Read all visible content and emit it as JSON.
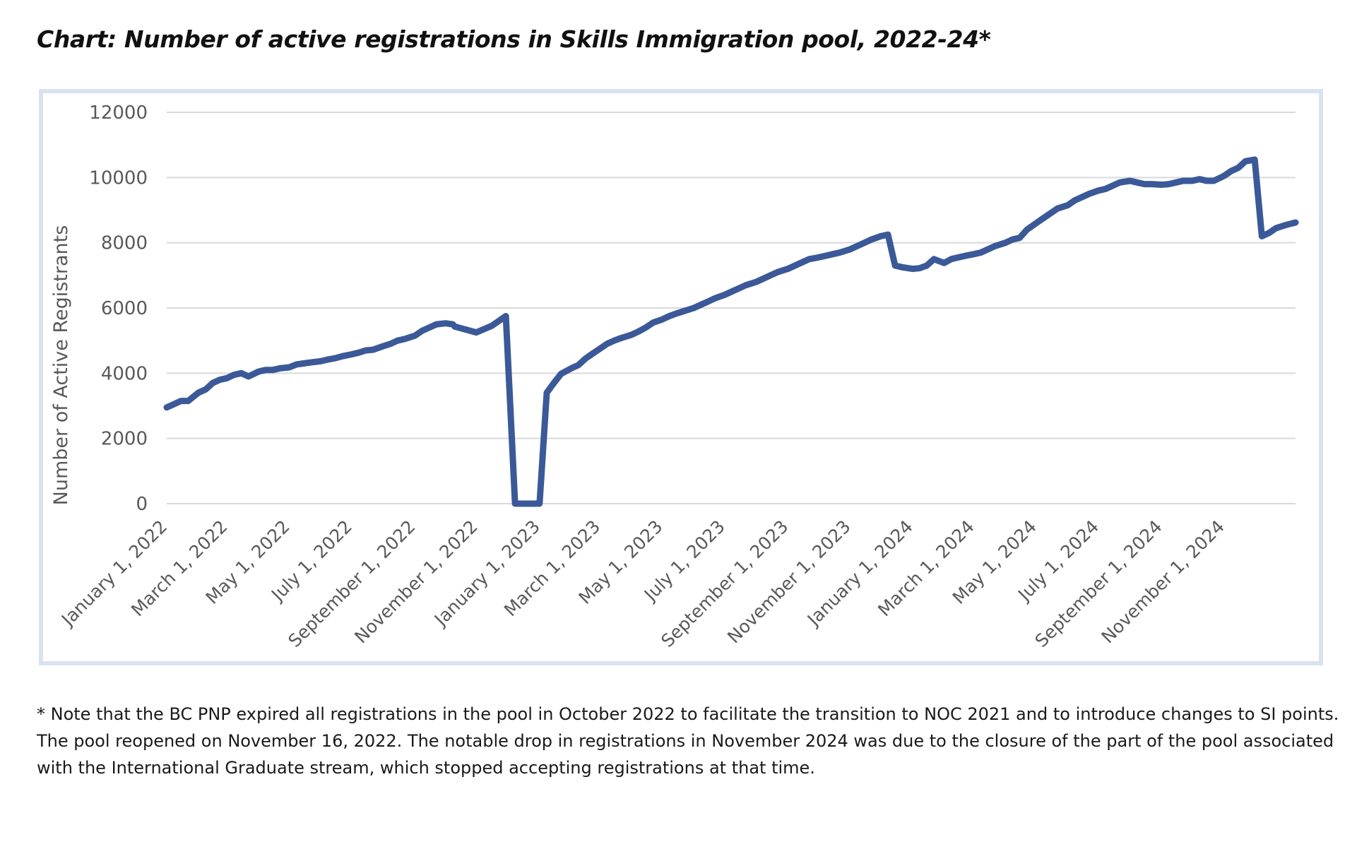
{
  "title": "Chart: Number of active registrations in Skills Immigration pool, 2022-24*",
  "footnote": {
    "lines": [
      "* Note that the BC PNP expired all registrations in the pool in October 2022 to facilitate the transition to NOC 2021 and to introduce changes to SI points.",
      "The pool reopened on November 16, 2022. The notable drop in registrations in November 2024 was due to the closure of the part of the pool associated",
      "with the International Graduate stream, which stopped accepting registrations at that time."
    ]
  },
  "colors": {
    "line": "#3b5998",
    "grid": "#d9d9d9",
    "frame": "#d9e2f1"
  },
  "chart_data": {
    "type": "line",
    "title": "Chart: Number of active registrations in Skills Immigration pool, 2022-24*",
    "xlabel": "",
    "ylabel": "Number of Active Registrants",
    "ylim": [
      0,
      12000
    ],
    "yticks": [
      0,
      2000,
      4000,
      6000,
      8000,
      10000,
      12000
    ],
    "xlim": [
      "2022-01-01",
      "2025-01-10"
    ],
    "xticks": [
      "January 1, 2022",
      "March 1, 2022",
      "May 1, 2022",
      "July 1, 2022",
      "September 1, 2022",
      "November 1, 2022",
      "January 1, 2023",
      "March 1, 2023",
      "May 1, 2023",
      "July 1, 2023",
      "September 1, 2023",
      "November 1, 2023",
      "January 1, 2024",
      "March 1, 2024",
      "May 1, 2024",
      "July 1, 2024",
      "September 1, 2024",
      "November 1, 2024"
    ],
    "grid": true,
    "legend": "none",
    "series": [
      {
        "x": [
          "2022-01-01",
          "2022-01-15",
          "2022-01-22",
          "2022-02-01",
          "2022-02-08",
          "2022-02-15",
          "2022-02-22",
          "2022-03-01",
          "2022-03-08",
          "2022-03-15",
          "2022-03-22",
          "2022-04-01",
          "2022-04-08",
          "2022-04-15",
          "2022-04-22",
          "2022-05-01",
          "2022-05-08",
          "2022-05-15",
          "2022-05-22",
          "2022-06-01",
          "2022-06-08",
          "2022-06-15",
          "2022-06-22",
          "2022-07-01",
          "2022-07-08",
          "2022-07-15",
          "2022-07-22",
          "2022-08-01",
          "2022-08-08",
          "2022-08-15",
          "2022-08-22",
          "2022-09-01",
          "2022-09-08",
          "2022-09-15",
          "2022-09-22",
          "2022-10-01",
          "2022-10-08",
          "2022-10-10",
          "2022-10-31",
          "2022-11-15",
          "2022-11-29",
          "2022-12-08",
          "2022-12-15",
          "2022-12-22",
          "2023-01-01",
          "2023-01-08",
          "2023-01-15",
          "2023-01-22",
          "2023-02-01",
          "2023-02-08",
          "2023-02-15",
          "2023-02-22",
          "2023-03-01",
          "2023-03-08",
          "2023-03-15",
          "2023-03-22",
          "2023-04-01",
          "2023-04-08",
          "2023-04-15",
          "2023-04-22",
          "2023-05-01",
          "2023-05-08",
          "2023-05-15",
          "2023-05-22",
          "2023-06-01",
          "2023-06-08",
          "2023-06-15",
          "2023-06-22",
          "2023-07-01",
          "2023-07-08",
          "2023-07-15",
          "2023-07-22",
          "2023-08-01",
          "2023-08-08",
          "2023-08-15",
          "2023-08-22",
          "2023-09-01",
          "2023-09-08",
          "2023-09-15",
          "2023-09-22",
          "2023-10-01",
          "2023-10-08",
          "2023-10-15",
          "2023-10-22",
          "2023-11-01",
          "2023-11-08",
          "2023-11-15",
          "2023-11-22",
          "2023-12-01",
          "2023-12-08",
          "2023-12-15",
          "2023-12-22",
          "2024-01-01",
          "2024-01-08",
          "2024-01-15",
          "2024-01-22",
          "2024-02-01",
          "2024-02-08",
          "2024-02-15",
          "2024-02-22",
          "2024-03-01",
          "2024-03-08",
          "2024-03-15",
          "2024-03-22",
          "2024-04-01",
          "2024-04-08",
          "2024-04-15",
          "2024-04-22",
          "2024-05-01",
          "2024-05-08",
          "2024-05-15",
          "2024-05-22",
          "2024-06-01",
          "2024-06-08",
          "2024-06-15",
          "2024-06-22",
          "2024-07-01",
          "2024-07-08",
          "2024-07-15",
          "2024-07-22",
          "2024-08-01",
          "2024-08-08",
          "2024-08-15",
          "2024-08-22",
          "2024-09-01",
          "2024-09-08",
          "2024-09-15",
          "2024-09-22",
          "2024-10-01",
          "2024-10-08",
          "2024-10-15",
          "2024-10-22",
          "2024-11-01",
          "2024-11-08",
          "2024-11-15",
          "2024-11-22",
          "2024-12-01",
          "2024-12-08",
          "2024-12-15",
          "2024-12-22",
          "2025-01-01",
          "2025-01-10"
        ],
        "y": [
          2950,
          3150,
          3150,
          3400,
          3500,
          3700,
          3800,
          3850,
          3950,
          4000,
          3900,
          4050,
          4100,
          4100,
          4150,
          4180,
          4270,
          4300,
          4330,
          4370,
          4420,
          4460,
          4520,
          4580,
          4630,
          4700,
          4720,
          4830,
          4900,
          5000,
          5050,
          5150,
          5300,
          5400,
          5500,
          5530,
          5500,
          5430,
          5250,
          5450,
          5750,
          0,
          0,
          0,
          0,
          3400,
          3700,
          3980,
          4150,
          4250,
          4450,
          4600,
          4750,
          4900,
          5000,
          5080,
          5180,
          5280,
          5400,
          5550,
          5650,
          5750,
          5830,
          5900,
          6000,
          6100,
          6200,
          6300,
          6400,
          6500,
          6600,
          6700,
          6800,
          6900,
          7000,
          7100,
          7200,
          7300,
          7400,
          7500,
          7550,
          7600,
          7650,
          7700,
          7800,
          7900,
          8000,
          8100,
          8200,
          8250,
          7300,
          7250,
          7200,
          7220,
          7300,
          7500,
          7380,
          7500,
          7550,
          7600,
          7650,
          7700,
          7800,
          7900,
          8000,
          8100,
          8150,
          8400,
          8600,
          8750,
          8900,
          9050,
          9150,
          9300,
          9400,
          9500,
          9600,
          9650,
          9750,
          9850,
          9900,
          9850,
          9800,
          9800,
          9780,
          9800,
          9850,
          9900,
          9900,
          9950,
          9900,
          9900,
          10050,
          10200,
          10300,
          10500,
          10550,
          8200,
          8300,
          8450,
          8550,
          8620
        ]
      }
    ]
  }
}
